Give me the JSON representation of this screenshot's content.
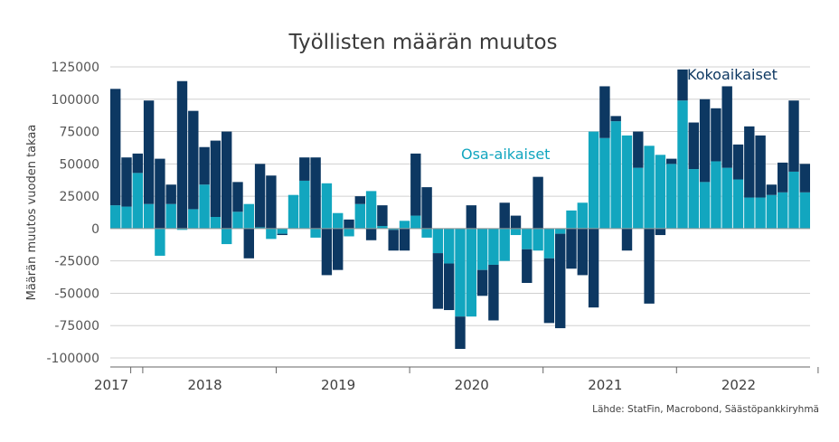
{
  "chart_data": {
    "type": "bar",
    "stacked": true,
    "title": "Työllisten määrän muutos",
    "ylabel": "Määrän muutos vuoden takaa",
    "xlabel": "",
    "ylim": [
      -100000,
      125000
    ],
    "yticks": [
      125000,
      100000,
      75000,
      50000,
      25000,
      0,
      -25000,
      -50000,
      -75000,
      -100000
    ],
    "year_labels": [
      "2017",
      "2018",
      "2019",
      "2020",
      "2021",
      "2022"
    ],
    "categories": [
      "2017-10",
      "2017-11",
      "2017-12",
      "2018-01",
      "2018-02",
      "2018-03",
      "2018-04",
      "2018-05",
      "2018-06",
      "2018-07",
      "2018-08",
      "2018-09",
      "2018-10",
      "2018-11",
      "2018-12",
      "2019-01",
      "2019-02",
      "2019-03",
      "2019-04",
      "2019-05",
      "2019-06",
      "2019-07",
      "2019-08",
      "2019-09",
      "2019-10",
      "2019-11",
      "2019-12",
      "2020-01",
      "2020-02",
      "2020-03",
      "2020-04",
      "2020-05",
      "2020-06",
      "2020-07",
      "2020-08",
      "2020-09",
      "2020-10",
      "2020-11",
      "2020-12",
      "2021-01",
      "2021-02",
      "2021-03",
      "2021-04",
      "2021-05",
      "2021-06",
      "2021-07",
      "2021-08",
      "2021-09",
      "2021-10",
      "2021-11",
      "2021-12",
      "2022-01",
      "2022-02",
      "2022-03",
      "2022-04",
      "2022-05",
      "2022-06",
      "2022-07",
      "2022-08",
      "2022-09",
      "2022-10",
      "2022-11",
      "2022-12"
    ],
    "series": [
      {
        "name": "Osa-aikaiset",
        "color": "#12a6bf",
        "values": [
          18000,
          17000,
          43000,
          19000,
          -21000,
          19000,
          -1000,
          15000,
          34000,
          9000,
          -12000,
          13000,
          19000,
          1000,
          -8000,
          -4000,
          26000,
          37000,
          -7000,
          35000,
          12000,
          -6000,
          19000,
          29000,
          2000,
          -1000,
          6000,
          10000,
          -7000,
          -19000,
          -27000,
          -68000,
          -68000,
          -32000,
          -28000,
          -25000,
          -5000,
          -16000,
          -17000,
          -23000,
          -4000,
          14000,
          20000,
          75000,
          70000,
          83000,
          72000,
          47000,
          64000,
          57000,
          50000,
          99000,
          46000,
          36000,
          52000,
          47000,
          38000,
          24000,
          24000,
          26000,
          28000,
          44000,
          28000
        ]
      },
      {
        "name": "Kokoaikaiset",
        "color": "#0d3862",
        "values": [
          90000,
          38000,
          15000,
          80000,
          54000,
          15000,
          114000,
          76000,
          29000,
          59000,
          75000,
          23000,
          -23000,
          49000,
          41000,
          -1000,
          0,
          18000,
          55000,
          -36000,
          -32000,
          7000,
          6000,
          -9000,
          16000,
          -16000,
          -17000,
          48000,
          32000,
          -43000,
          -36000,
          -25000,
          18000,
          -20000,
          -43000,
          20000,
          10000,
          -26000,
          40000,
          -50000,
          -73000,
          -31000,
          -36000,
          -61000,
          40000,
          4000,
          -17000,
          28000,
          -58000,
          -5000,
          4000,
          24000,
          36000,
          64000,
          41000,
          63000,
          27000,
          55000,
          48000,
          8000,
          23000,
          55000,
          22000
        ]
      }
    ],
    "annotations": {
      "osa_label": "Osa-aikaiset",
      "koko_label": "Kokoaikaiset"
    },
    "source": "Lähde: StatFin, Macrobond, Säästöpankkiryhmä",
    "grid": true,
    "legend": "inline labels"
  }
}
